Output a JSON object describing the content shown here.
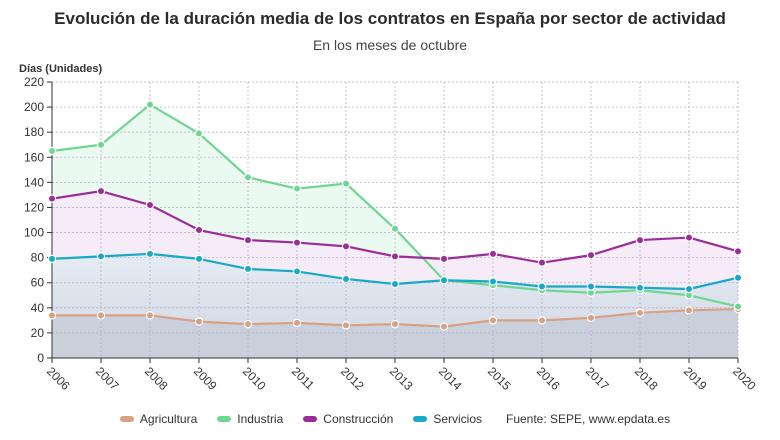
{
  "chart_data": {
    "type": "line",
    "title": "Evolución de la duración media de los contratos en España por sector de actividad",
    "subtitle": "En los meses de octubre",
    "ylabel": "Días (Unidades)",
    "xlabel": "",
    "ylim": [
      0,
      220
    ],
    "yticks": [
      0,
      20,
      40,
      60,
      80,
      100,
      120,
      140,
      160,
      180,
      200,
      220
    ],
    "grid": true,
    "legend_position": "bottom",
    "categories": [
      "2006",
      "2007",
      "2008",
      "2009",
      "2010",
      "2011",
      "2012",
      "2013",
      "2014",
      "2015",
      "2016",
      "2017",
      "2018",
      "2019",
      "2020"
    ],
    "series": [
      {
        "name": "Agricultura",
        "color": "#d9a184",
        "values": [
          34,
          34,
          34,
          29,
          27,
          28,
          26,
          27,
          25,
          30,
          30,
          32,
          36,
          38,
          39
        ]
      },
      {
        "name": "Industria",
        "color": "#6fd691",
        "values": [
          165,
          170,
          202,
          179,
          144,
          135,
          139,
          103,
          62,
          58,
          54,
          52,
          54,
          50,
          41
        ]
      },
      {
        "name": "Construcción",
        "color": "#9b2d9a",
        "values": [
          127,
          133,
          122,
          102,
          94,
          92,
          89,
          81,
          79,
          83,
          76,
          82,
          94,
          96,
          85
        ]
      },
      {
        "name": "Servicios",
        "color": "#17a9c7",
        "values": [
          79,
          81,
          83,
          79,
          71,
          69,
          63,
          59,
          62,
          61,
          57,
          57,
          56,
          55,
          64
        ]
      }
    ],
    "source": "Fuente: SEPE, www.epdata.es"
  }
}
